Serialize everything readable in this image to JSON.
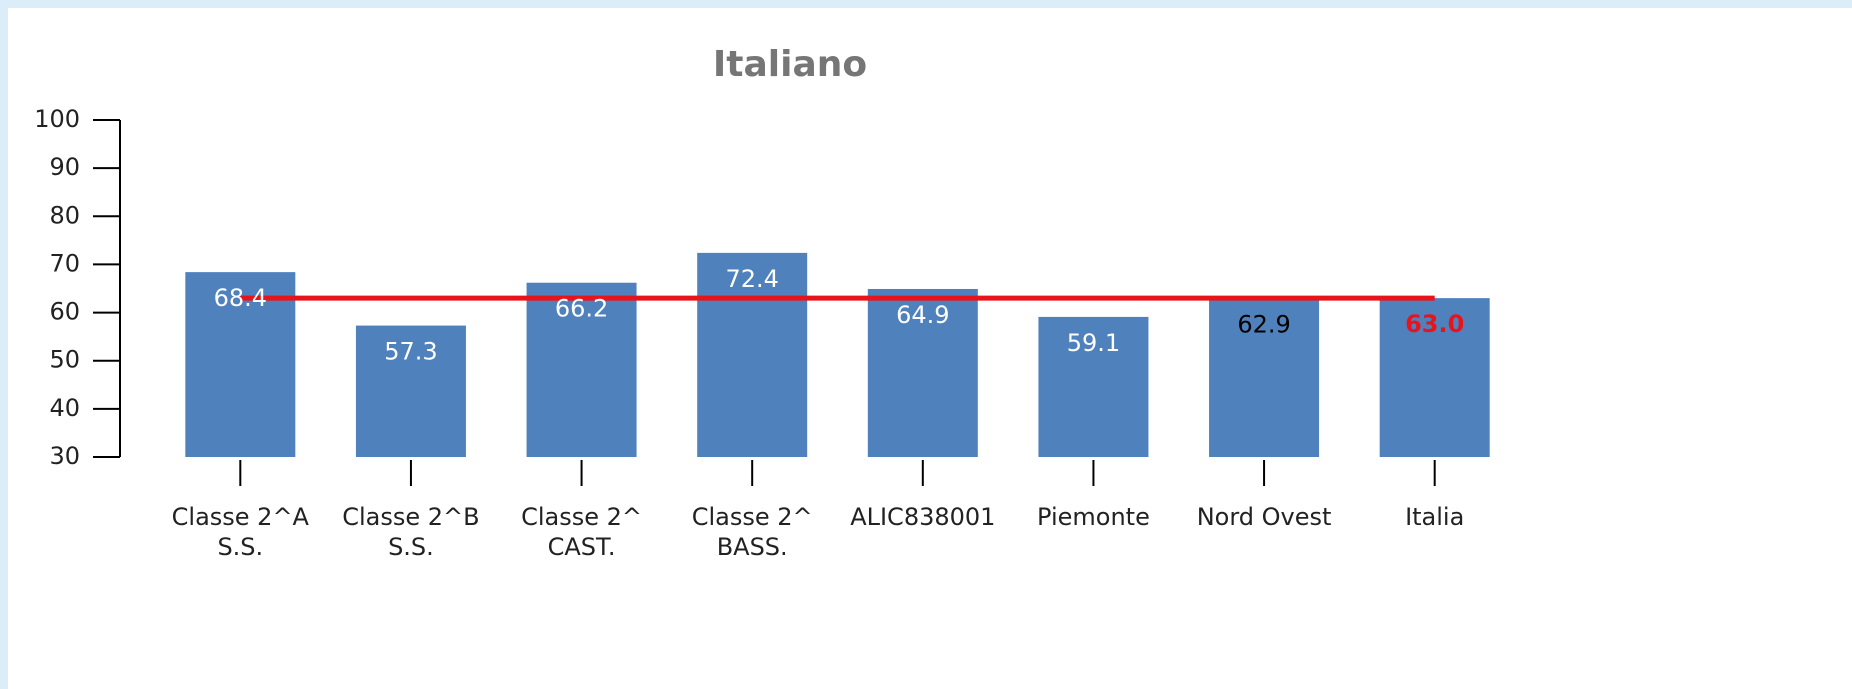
{
  "chart_data": {
    "type": "bar",
    "title": "Italiano",
    "categories": [
      [
        "Classe 2^A",
        "S.S."
      ],
      [
        "Classe 2^B",
        "S.S."
      ],
      [
        "Classe 2^",
        "CAST."
      ],
      [
        "Classe 2^",
        "BASS."
      ],
      [
        "ALIC838001"
      ],
      [
        "Piemonte"
      ],
      [
        "Nord Ovest"
      ],
      [
        "Italia"
      ]
    ],
    "values": [
      68.4,
      57.3,
      66.2,
      72.4,
      64.9,
      59.1,
      62.9,
      63
    ],
    "value_labels": [
      "68.4",
      "57.3",
      "66.2",
      "72.4",
      "64.9",
      "59.1",
      "62.9",
      "63.0"
    ],
    "value_label_colors": [
      "#ffffff",
      "#ffffff",
      "#ffffff",
      "#ffffff",
      "#ffffff",
      "#ffffff",
      "#000000",
      "#e8141a"
    ],
    "color": "#4f81bd",
    "reference_line": {
      "value": 63,
      "color": "#e8141a"
    },
    "ylim": [
      30,
      100
    ],
    "yticks": [
      30,
      40,
      50,
      60,
      70,
      80,
      90,
      100
    ],
    "grid": false
  }
}
